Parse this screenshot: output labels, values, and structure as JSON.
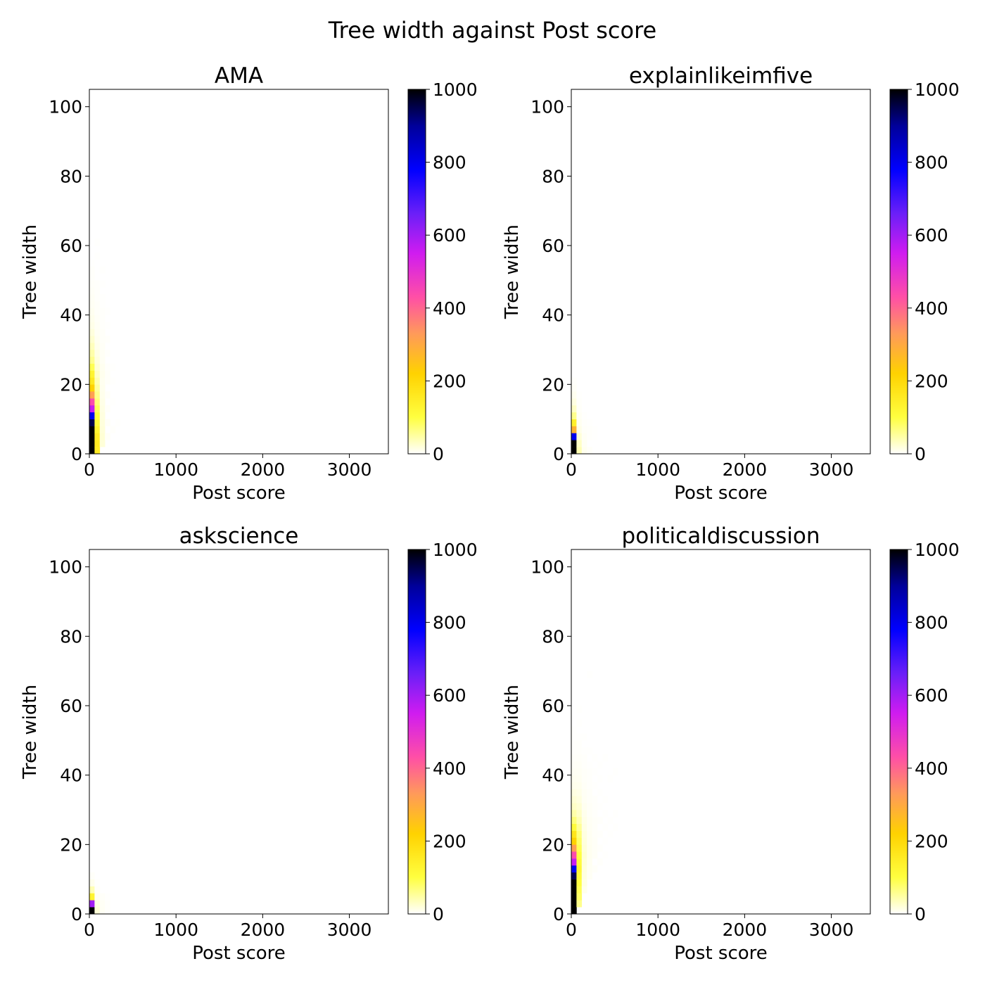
{
  "suptitle": "Tree width against Post score",
  "chart_data": [
    {
      "type": "heatmap",
      "title": "AMA",
      "xlabel": "Post score",
      "ylabel": "Tree width",
      "xlim": [
        0,
        3450
      ],
      "ylim": [
        0,
        105
      ],
      "xticks": [
        0,
        1000,
        2000,
        3000
      ],
      "yticks": [
        0,
        20,
        40,
        60,
        80,
        100
      ],
      "bin_width": 60,
      "bin_height": 2,
      "colorbar": {
        "min": 0,
        "max": 1000,
        "ticks": [
          0,
          200,
          400,
          600,
          800,
          1000
        ],
        "colormap": "gnuplot2_r"
      },
      "cells": [
        [
          0,
          0,
          1000
        ],
        [
          0,
          2,
          1000
        ],
        [
          0,
          4,
          1000
        ],
        [
          0,
          6,
          1000
        ],
        [
          0,
          8,
          950
        ],
        [
          0,
          10,
          800
        ],
        [
          0,
          12,
          560
        ],
        [
          0,
          14,
          440
        ],
        [
          0,
          16,
          320
        ],
        [
          0,
          18,
          220
        ],
        [
          0,
          20,
          160
        ],
        [
          0,
          22,
          130
        ],
        [
          0,
          24,
          90
        ],
        [
          0,
          26,
          60
        ],
        [
          0,
          28,
          45
        ],
        [
          0,
          30,
          35
        ],
        [
          0,
          32,
          25
        ],
        [
          0,
          34,
          18
        ],
        [
          0,
          36,
          12
        ],
        [
          0,
          38,
          10
        ],
        [
          0,
          40,
          8
        ],
        [
          0,
          42,
          6
        ],
        [
          0,
          44,
          5
        ],
        [
          0,
          46,
          4
        ],
        [
          0,
          48,
          3
        ],
        [
          0,
          50,
          2
        ],
        [
          0,
          52,
          2
        ],
        [
          0,
          54,
          1
        ],
        [
          60,
          0,
          150
        ],
        [
          60,
          2,
          160
        ],
        [
          60,
          4,
          150
        ],
        [
          60,
          6,
          130
        ],
        [
          60,
          8,
          110
        ],
        [
          60,
          10,
          100
        ],
        [
          60,
          12,
          85
        ],
        [
          60,
          14,
          70
        ],
        [
          60,
          16,
          60
        ],
        [
          60,
          18,
          50
        ],
        [
          60,
          20,
          40
        ],
        [
          60,
          22,
          30
        ],
        [
          60,
          24,
          22
        ],
        [
          60,
          26,
          18
        ],
        [
          60,
          28,
          14
        ],
        [
          60,
          30,
          10
        ],
        [
          60,
          32,
          8
        ],
        [
          60,
          34,
          6
        ],
        [
          60,
          36,
          5
        ],
        [
          60,
          38,
          4
        ],
        [
          60,
          40,
          3
        ],
        [
          60,
          42,
          3
        ],
        [
          60,
          44,
          2
        ],
        [
          60,
          46,
          2
        ],
        [
          60,
          48,
          2
        ],
        [
          60,
          56,
          1
        ],
        [
          60,
          60,
          1
        ],
        [
          120,
          2,
          20
        ],
        [
          120,
          4,
          22
        ],
        [
          120,
          6,
          20
        ],
        [
          120,
          8,
          18
        ],
        [
          120,
          10,
          16
        ],
        [
          120,
          12,
          14
        ],
        [
          120,
          14,
          12
        ],
        [
          120,
          16,
          10
        ],
        [
          120,
          18,
          9
        ],
        [
          120,
          20,
          8
        ],
        [
          120,
          22,
          9
        ],
        [
          120,
          24,
          8
        ],
        [
          120,
          26,
          6
        ],
        [
          120,
          28,
          5
        ],
        [
          120,
          30,
          4
        ],
        [
          120,
          32,
          3
        ],
        [
          120,
          34,
          3
        ],
        [
          120,
          36,
          2
        ],
        [
          120,
          38,
          2
        ],
        [
          120,
          40,
          2
        ],
        [
          120,
          42,
          1
        ],
        [
          120,
          44,
          1
        ],
        [
          120,
          48,
          1
        ],
        [
          120,
          52,
          1
        ],
        [
          180,
          4,
          4
        ],
        [
          180,
          8,
          4
        ],
        [
          180,
          12,
          3
        ],
        [
          180,
          16,
          3
        ],
        [
          180,
          20,
          3
        ],
        [
          180,
          22,
          3
        ],
        [
          180,
          24,
          2
        ],
        [
          180,
          28,
          2
        ],
        [
          180,
          32,
          2
        ],
        [
          180,
          36,
          1
        ],
        [
          180,
          40,
          1
        ],
        [
          240,
          6,
          2
        ],
        [
          240,
          14,
          1
        ],
        [
          240,
          20,
          1
        ],
        [
          240,
          24,
          1
        ],
        [
          300,
          8,
          1
        ]
      ]
    },
    {
      "type": "heatmap",
      "title": "explainlikeimfive",
      "xlabel": "Post score",
      "ylabel": "Tree width",
      "xlim": [
        0,
        3450
      ],
      "ylim": [
        0,
        105
      ],
      "xticks": [
        0,
        1000,
        2000,
        3000
      ],
      "yticks": [
        0,
        20,
        40,
        60,
        80,
        100
      ],
      "bin_width": 60,
      "bin_height": 2,
      "colorbar": {
        "min": 0,
        "max": 1000,
        "ticks": [
          0,
          200,
          400,
          600,
          800,
          1000
        ],
        "colormap": "gnuplot2_r"
      },
      "cells": [
        [
          0,
          0,
          1000
        ],
        [
          0,
          2,
          1000
        ],
        [
          0,
          4,
          800
        ],
        [
          0,
          6,
          280
        ],
        [
          0,
          8,
          140
        ],
        [
          0,
          10,
          60
        ],
        [
          0,
          12,
          30
        ],
        [
          0,
          14,
          15
        ],
        [
          0,
          16,
          8
        ],
        [
          0,
          18,
          4
        ],
        [
          0,
          20,
          2
        ],
        [
          60,
          0,
          40
        ],
        [
          60,
          2,
          30
        ],
        [
          60,
          4,
          20
        ],
        [
          60,
          6,
          12
        ],
        [
          60,
          8,
          8
        ],
        [
          60,
          10,
          5
        ],
        [
          60,
          12,
          3
        ],
        [
          60,
          14,
          2
        ],
        [
          60,
          16,
          1
        ],
        [
          120,
          0,
          8
        ],
        [
          120,
          2,
          6
        ],
        [
          120,
          4,
          5
        ],
        [
          120,
          6,
          3
        ],
        [
          120,
          8,
          2
        ],
        [
          120,
          10,
          1
        ],
        [
          180,
          0,
          3
        ],
        [
          180,
          4,
          2
        ],
        [
          180,
          6,
          2
        ],
        [
          180,
          8,
          1
        ],
        [
          240,
          4,
          1
        ],
        [
          240,
          6,
          1
        ]
      ]
    },
    {
      "type": "heatmap",
      "title": "askscience",
      "xlabel": "Post score",
      "ylabel": "Tree width",
      "xlim": [
        0,
        3450
      ],
      "ylim": [
        0,
        105
      ],
      "xticks": [
        0,
        1000,
        2000,
        3000
      ],
      "yticks": [
        0,
        20,
        40,
        60,
        80,
        100
      ],
      "bin_width": 60,
      "bin_height": 2,
      "colorbar": {
        "min": 0,
        "max": 1000,
        "ticks": [
          0,
          200,
          400,
          600,
          800,
          1000
        ],
        "colormap": "gnuplot2_r"
      },
      "cells": [
        [
          0,
          0,
          1000
        ],
        [
          0,
          2,
          600
        ],
        [
          0,
          4,
          130
        ],
        [
          0,
          6,
          40
        ],
        [
          0,
          8,
          10
        ],
        [
          0,
          10,
          3
        ],
        [
          60,
          0,
          20
        ],
        [
          60,
          2,
          15
        ],
        [
          60,
          4,
          6
        ],
        [
          60,
          6,
          3
        ],
        [
          60,
          8,
          1
        ],
        [
          120,
          0,
          6
        ],
        [
          120,
          2,
          5
        ],
        [
          120,
          4,
          3
        ],
        [
          180,
          0,
          2
        ],
        [
          180,
          2,
          2
        ],
        [
          180,
          4,
          1
        ]
      ]
    },
    {
      "type": "heatmap",
      "title": "politicaldiscussion",
      "xlabel": "Post score",
      "ylabel": "Tree width",
      "xlim": [
        0,
        3450
      ],
      "ylim": [
        0,
        105
      ],
      "xticks": [
        0,
        1000,
        2000,
        3000
      ],
      "yticks": [
        0,
        20,
        40,
        60,
        80,
        100
      ],
      "bin_width": 60,
      "bin_height": 2,
      "colorbar": {
        "min": 0,
        "max": 1000,
        "ticks": [
          0,
          200,
          400,
          600,
          800,
          1000
        ],
        "colormap": "gnuplot2_r"
      },
      "cells": [
        [
          0,
          0,
          1000
        ],
        [
          0,
          2,
          1000
        ],
        [
          0,
          4,
          1000
        ],
        [
          0,
          6,
          1000
        ],
        [
          0,
          8,
          1000
        ],
        [
          0,
          10,
          950
        ],
        [
          0,
          12,
          800
        ],
        [
          0,
          14,
          560
        ],
        [
          0,
          16,
          440
        ],
        [
          0,
          18,
          320
        ],
        [
          0,
          20,
          220
        ],
        [
          0,
          22,
          170
        ],
        [
          0,
          24,
          110
        ],
        [
          0,
          26,
          70
        ],
        [
          0,
          28,
          45
        ],
        [
          0,
          30,
          30
        ],
        [
          0,
          32,
          22
        ],
        [
          0,
          34,
          15
        ],
        [
          0,
          36,
          10
        ],
        [
          0,
          38,
          8
        ],
        [
          0,
          40,
          6
        ],
        [
          0,
          42,
          4
        ],
        [
          0,
          44,
          3
        ],
        [
          0,
          46,
          2
        ],
        [
          0,
          48,
          2
        ],
        [
          0,
          50,
          1
        ],
        [
          0,
          52,
          1
        ],
        [
          60,
          2,
          60
        ],
        [
          60,
          4,
          80
        ],
        [
          60,
          6,
          90
        ],
        [
          60,
          8,
          100
        ],
        [
          60,
          10,
          110
        ],
        [
          60,
          12,
          120
        ],
        [
          60,
          14,
          110
        ],
        [
          60,
          16,
          100
        ],
        [
          60,
          18,
          90
        ],
        [
          60,
          20,
          80
        ],
        [
          60,
          22,
          70
        ],
        [
          60,
          24,
          55
        ],
        [
          60,
          26,
          40
        ],
        [
          60,
          28,
          30
        ],
        [
          60,
          30,
          22
        ],
        [
          60,
          32,
          16
        ],
        [
          60,
          34,
          12
        ],
        [
          60,
          36,
          9
        ],
        [
          60,
          38,
          7
        ],
        [
          60,
          40,
          5
        ],
        [
          60,
          42,
          4
        ],
        [
          60,
          44,
          3
        ],
        [
          60,
          46,
          2
        ],
        [
          60,
          48,
          2
        ],
        [
          60,
          50,
          1
        ],
        [
          60,
          54,
          1
        ],
        [
          60,
          58,
          1
        ],
        [
          120,
          6,
          10
        ],
        [
          120,
          8,
          14
        ],
        [
          120,
          10,
          16
        ],
        [
          120,
          12,
          18
        ],
        [
          120,
          14,
          20
        ],
        [
          120,
          16,
          22
        ],
        [
          120,
          18,
          20
        ],
        [
          120,
          20,
          18
        ],
        [
          120,
          22,
          16
        ],
        [
          120,
          24,
          14
        ],
        [
          120,
          26,
          12
        ],
        [
          120,
          28,
          10
        ],
        [
          120,
          30,
          8
        ],
        [
          120,
          32,
          6
        ],
        [
          120,
          34,
          5
        ],
        [
          120,
          36,
          4
        ],
        [
          120,
          38,
          3
        ],
        [
          120,
          40,
          3
        ],
        [
          120,
          42,
          2
        ],
        [
          120,
          44,
          2
        ],
        [
          120,
          46,
          1
        ],
        [
          120,
          50,
          1
        ],
        [
          180,
          10,
          5
        ],
        [
          180,
          12,
          6
        ],
        [
          180,
          14,
          7
        ],
        [
          180,
          16,
          8
        ],
        [
          180,
          18,
          8
        ],
        [
          180,
          20,
          7
        ],
        [
          180,
          22,
          7
        ],
        [
          180,
          24,
          6
        ],
        [
          180,
          26,
          5
        ],
        [
          180,
          28,
          4
        ],
        [
          180,
          30,
          4
        ],
        [
          180,
          32,
          3
        ],
        [
          180,
          34,
          3
        ],
        [
          180,
          36,
          2
        ],
        [
          180,
          38,
          2
        ],
        [
          180,
          40,
          2
        ],
        [
          180,
          42,
          1
        ],
        [
          180,
          46,
          1
        ],
        [
          180,
          68,
          1
        ],
        [
          240,
          12,
          3
        ],
        [
          240,
          16,
          4
        ],
        [
          240,
          18,
          4
        ],
        [
          240,
          20,
          4
        ],
        [
          240,
          22,
          3
        ],
        [
          240,
          24,
          3
        ],
        [
          240,
          26,
          3
        ],
        [
          240,
          28,
          2
        ],
        [
          240,
          30,
          2
        ],
        [
          240,
          32,
          2
        ],
        [
          240,
          36,
          1
        ],
        [
          240,
          40,
          1
        ],
        [
          240,
          44,
          1
        ],
        [
          300,
          14,
          2
        ],
        [
          300,
          18,
          2
        ],
        [
          300,
          22,
          2
        ],
        [
          300,
          26,
          2
        ],
        [
          300,
          30,
          1
        ],
        [
          300,
          34,
          1
        ],
        [
          300,
          38,
          1
        ],
        [
          300,
          42,
          1
        ],
        [
          360,
          16,
          1
        ],
        [
          360,
          20,
          1
        ],
        [
          360,
          24,
          1
        ],
        [
          360,
          28,
          1
        ],
        [
          360,
          32,
          1
        ],
        [
          360,
          44,
          1
        ],
        [
          420,
          22,
          1
        ],
        [
          420,
          26,
          1
        ],
        [
          420,
          38,
          1
        ],
        [
          480,
          24,
          1
        ],
        [
          480,
          28,
          1
        ],
        [
          480,
          40,
          1
        ]
      ]
    }
  ]
}
